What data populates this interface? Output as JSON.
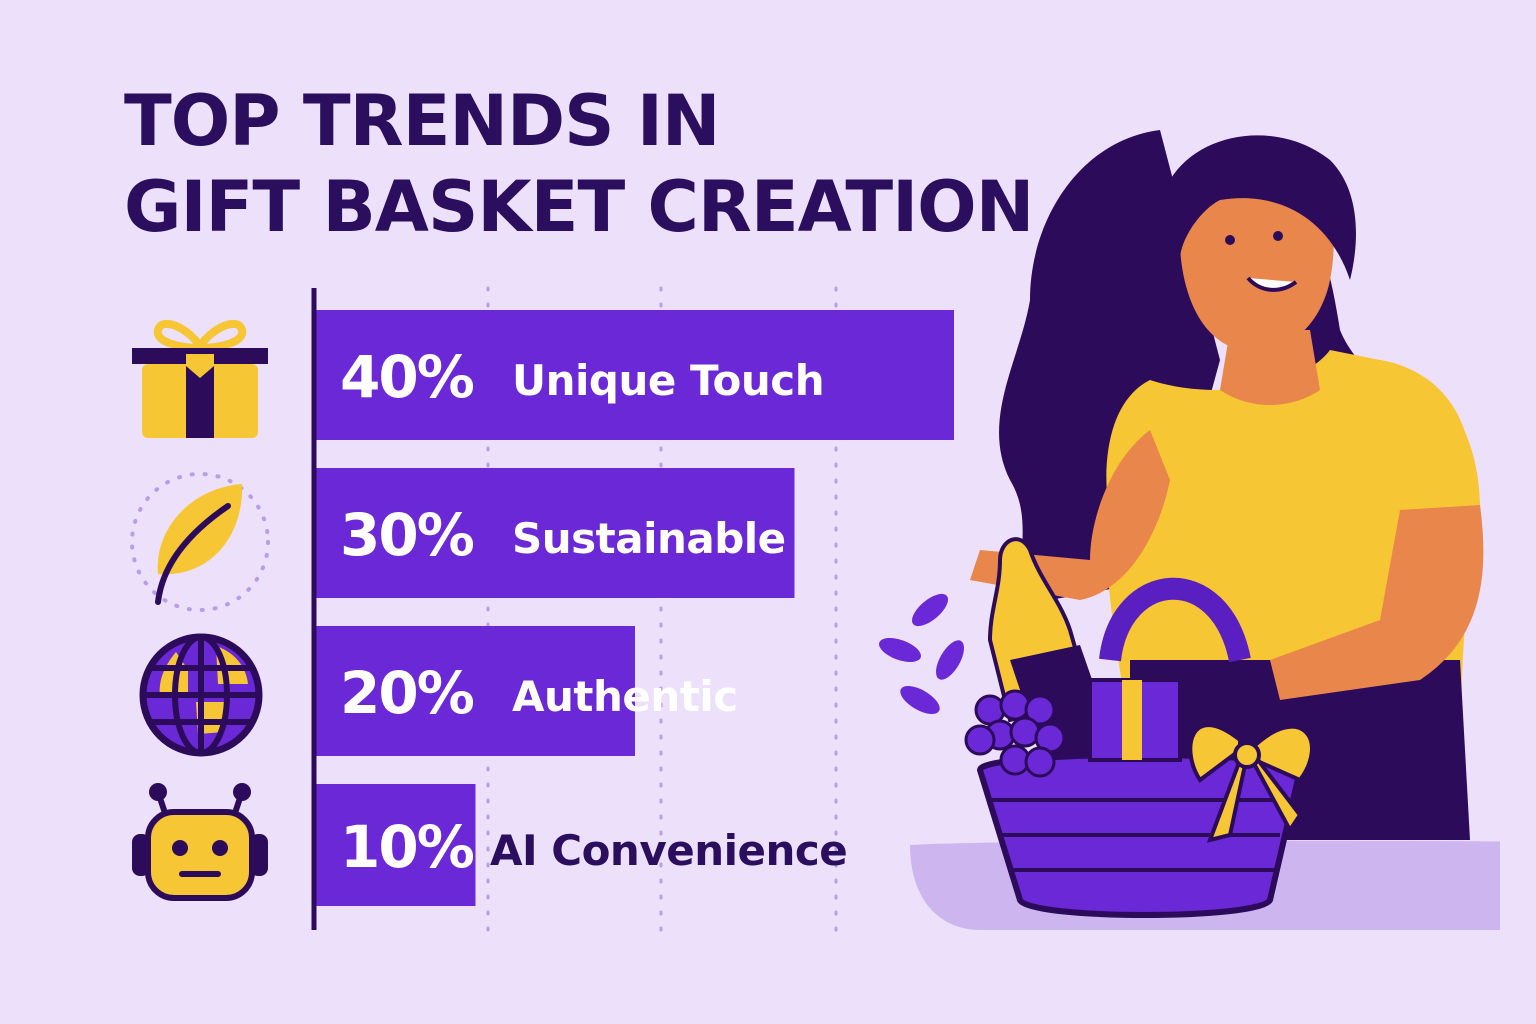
{
  "title_lines": [
    "TOP TRENDS IN",
    "GIFT BASKET CREATION"
  ],
  "colors": {
    "background": "#ece0fb",
    "bar": "#6a28d6",
    "title": "#2b0f5e",
    "accent": "#f7c634",
    "dark": "#2d0b5b"
  },
  "chart_data": {
    "type": "bar",
    "orientation": "horizontal",
    "categories": [
      "Unique Touch",
      "Sustainable",
      "Authentic",
      "AI Convenience"
    ],
    "values": [
      40,
      30,
      20,
      10
    ],
    "value_labels": [
      "40%",
      "30%",
      "20%",
      "10%"
    ],
    "xlim": [
      0,
      40
    ],
    "grid": "vertical-dotted"
  },
  "icons": [
    "gift-box-icon",
    "leaf-icon",
    "globe-icon",
    "robot-icon"
  ]
}
